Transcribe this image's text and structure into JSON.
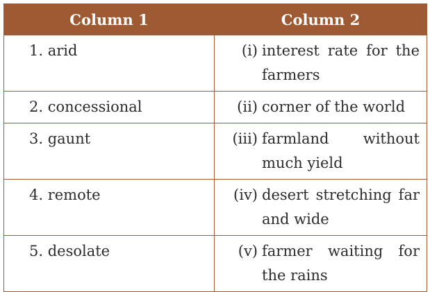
{
  "table": {
    "headers": [
      "Column 1",
      "Column 2"
    ],
    "rows": [
      [
        "1. arid",
        "(i)",
        "interest rate for the farmers"
      ],
      [
        "2. concessional",
        "(ii)",
        "corner of the world"
      ],
      [
        "3. gaunt",
        "(iii)",
        "farmland without much yield"
      ],
      [
        "4. remote",
        "(iv)",
        "desert stretching far and wide"
      ],
      [
        "5. desolate",
        "(v)",
        "farmer waiting for the rains"
      ]
    ]
  }
}
